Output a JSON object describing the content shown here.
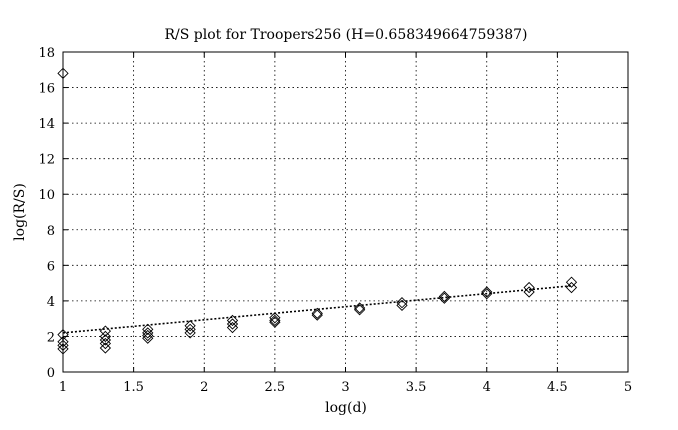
{
  "chart_data": {
    "type": "scatter",
    "title": "R/S plot for Troopers256 (H=0.658349664759387)",
    "xlabel": "log(d)",
    "ylabel": "log(R/S)",
    "xlim": [
      1,
      5
    ],
    "ylim": [
      0,
      18
    ],
    "xticks": [
      "1",
      "1.5",
      "2",
      "2.5",
      "3",
      "3.5",
      "4",
      "4.5",
      "5"
    ],
    "yticks": [
      "0",
      "2",
      "4",
      "6",
      "8",
      "10",
      "12",
      "14",
      "16",
      "18"
    ],
    "xtick_values": [
      1,
      1.5,
      2,
      2.5,
      3,
      3.5,
      4,
      4.5,
      5
    ],
    "ytick_values": [
      0,
      2,
      4,
      6,
      8,
      10,
      12,
      14,
      16,
      18
    ],
    "grid": true,
    "marker": "diamond",
    "series": [
      {
        "points": [
          [
            1.0,
            16.8
          ],
          [
            1.0,
            2.1
          ],
          [
            1.0,
            1.7
          ],
          [
            1.0,
            1.5
          ],
          [
            1.0,
            1.3
          ],
          [
            1.3,
            2.3
          ],
          [
            1.3,
            2.0
          ],
          [
            1.3,
            1.8
          ],
          [
            1.3,
            1.6
          ],
          [
            1.3,
            1.35
          ],
          [
            1.6,
            2.4
          ],
          [
            1.6,
            2.2
          ],
          [
            1.6,
            2.05
          ],
          [
            1.6,
            1.9
          ],
          [
            1.9,
            2.6
          ],
          [
            1.9,
            2.4
          ],
          [
            1.9,
            2.2
          ],
          [
            2.2,
            2.9
          ],
          [
            2.2,
            2.7
          ],
          [
            2.2,
            2.5
          ],
          [
            2.5,
            3.05
          ],
          [
            2.5,
            2.9
          ],
          [
            2.5,
            2.8
          ],
          [
            2.8,
            3.3
          ],
          [
            2.8,
            3.2
          ],
          [
            3.1,
            3.6
          ],
          [
            3.1,
            3.5
          ],
          [
            3.4,
            3.9
          ],
          [
            3.4,
            3.75
          ],
          [
            3.7,
            4.25
          ],
          [
            3.7,
            4.15
          ],
          [
            4.0,
            4.5
          ],
          [
            4.0,
            4.4
          ],
          [
            4.3,
            4.75
          ],
          [
            4.3,
            4.5
          ],
          [
            4.6,
            5.05
          ],
          [
            4.6,
            4.75
          ]
        ]
      }
    ],
    "fit_line": [
      [
        1.0,
        2.2
      ],
      [
        4.6,
        4.85
      ]
    ]
  }
}
